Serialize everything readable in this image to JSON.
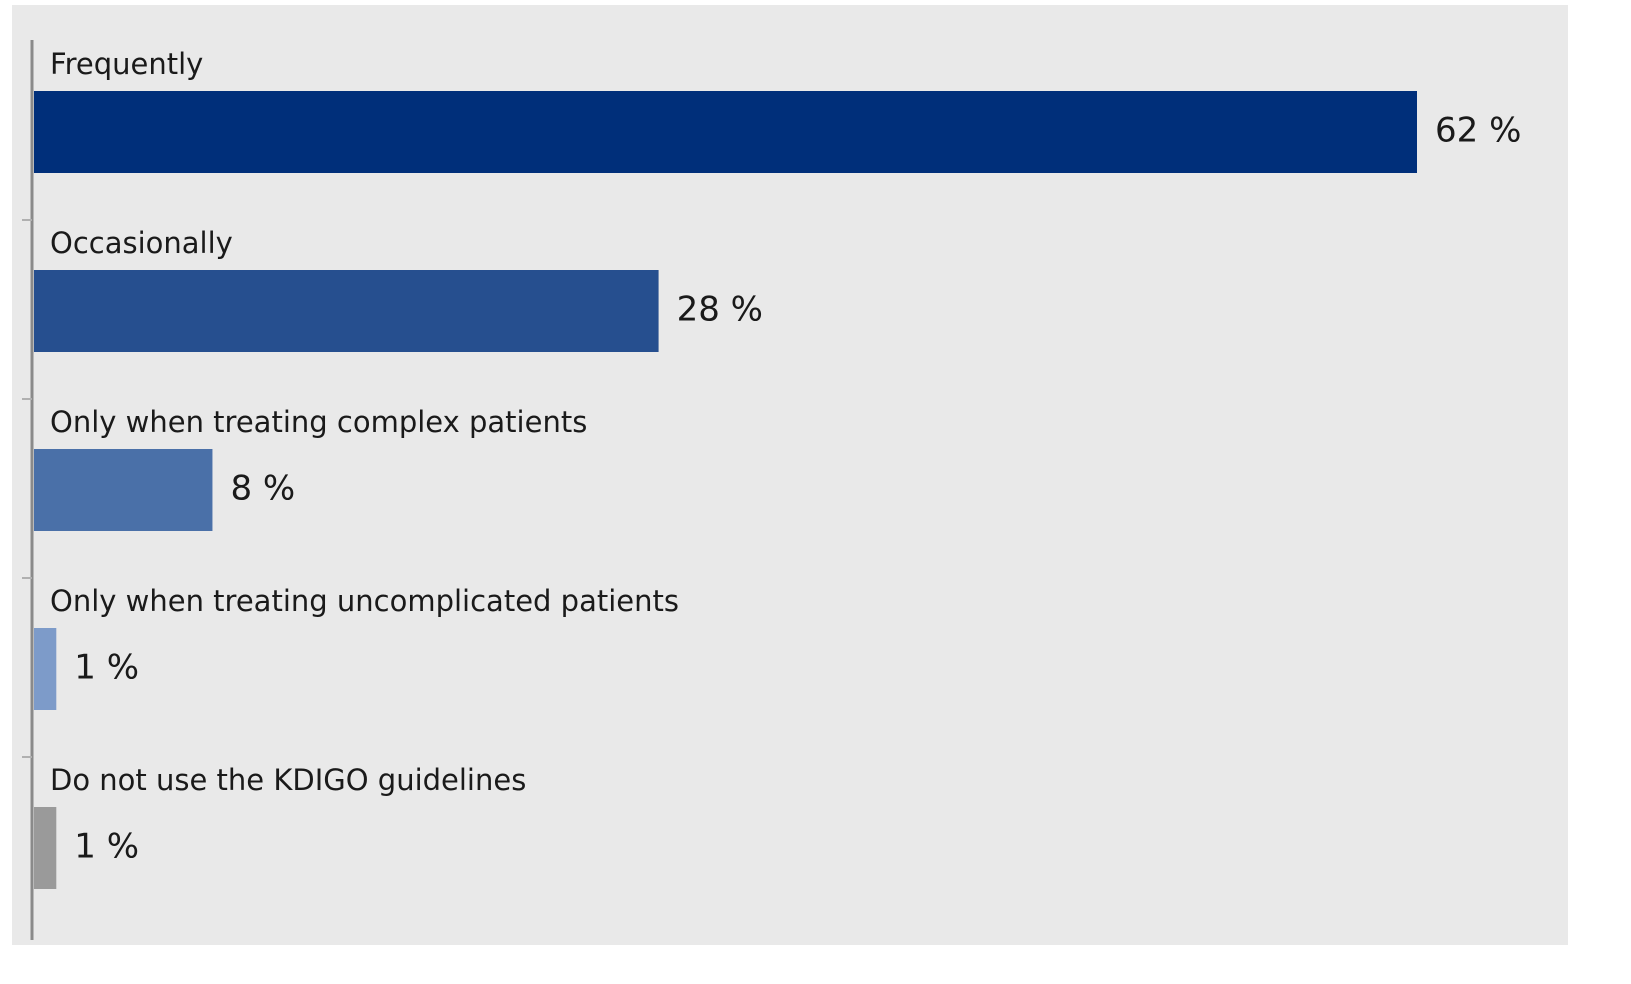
{
  "chart_data": {
    "type": "bar",
    "orientation": "horizontal",
    "categories": [
      "Frequently",
      "Occasionally",
      "Only when treating complex patients",
      "Only when treating uncomplicated patients",
      "Do not use the KDIGO guidelines"
    ],
    "values": [
      62,
      28,
      8,
      1,
      1
    ],
    "value_labels": [
      "62 %",
      "28 %",
      "8 %",
      "1 %",
      "1 %"
    ],
    "colors": [
      "#002f7a",
      "#264f8f",
      "#4a70a8",
      "#7d9bc9",
      "#9a9a9a"
    ]
  }
}
